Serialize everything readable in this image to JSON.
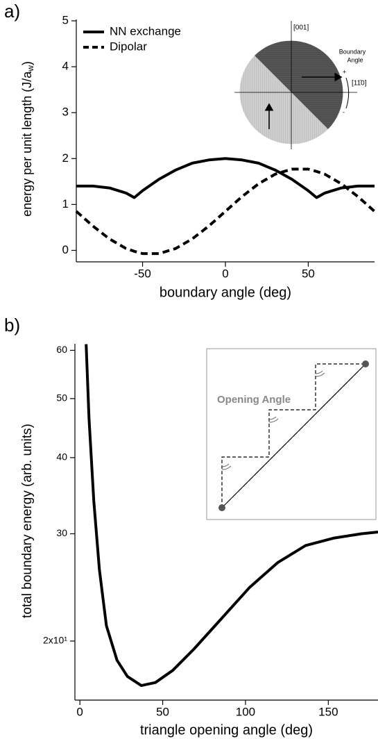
{
  "chart_data": [
    {
      "type": "line",
      "panel_label": "a)",
      "ylabel": [
        "energy per unit length (J/a",
        "w",
        ")"
      ],
      "xlabel": "boundary angle (deg)",
      "x": [
        -90,
        -80,
        -70,
        -60,
        -55,
        -50,
        -40,
        -30,
        -20,
        -10,
        0,
        10,
        20,
        30,
        40,
        50,
        55,
        60,
        70,
        80,
        90
      ],
      "series": [
        {
          "name": "NN exchange",
          "color": "#000000",
          "line_style": "solid",
          "values": [
            1.4,
            1.4,
            1.36,
            1.25,
            1.15,
            1.3,
            1.55,
            1.75,
            1.9,
            1.97,
            2.0,
            1.97,
            1.9,
            1.75,
            1.55,
            1.3,
            1.15,
            1.25,
            1.36,
            1.4,
            1.4
          ]
        },
        {
          "name": "Dipolar",
          "color": "#000000",
          "line_style": "dashed",
          "values": [
            0.85,
            0.53,
            0.25,
            0.04,
            -0.02,
            -0.07,
            -0.07,
            0.04,
            0.25,
            0.53,
            0.85,
            1.17,
            1.45,
            1.66,
            1.77,
            1.77,
            1.72,
            1.66,
            1.45,
            1.17,
            0.85
          ]
        }
      ],
      "xlim": [
        -90,
        90
      ],
      "xticks": [
        -50,
        0,
        50
      ],
      "ylim": [
        -0.25,
        5.03
      ],
      "yticks": [
        0,
        1,
        2,
        3,
        4,
        5
      ],
      "legend": "top-left",
      "inset_labels": [
        "[001]",
        "Boundary",
        "Angle",
        "[11̄0]",
        "+",
        "-"
      ]
    },
    {
      "type": "line",
      "panel_label": "b)",
      "ylabel": [
        "total boundary energy (arb. units)"
      ],
      "xlabel": "triangle opening angle (deg)",
      "x": [
        3.8,
        5.5,
        8.4,
        11.8,
        16.0,
        22.4,
        28.7,
        37.1,
        45.6,
        56.1,
        68.8,
        85.7,
        102.5,
        119.4,
        136.3,
        153,
        170,
        180
      ],
      "series": [
        {
          "color": "#000000",
          "line_style": "solid",
          "values": [
            61.4,
            46.5,
            34.0,
            26.2,
            21.2,
            18.6,
            17.5,
            16.9,
            17.1,
            17.9,
            19.4,
            21.8,
            24.5,
            26.9,
            28.7,
            29.5,
            30.0,
            30.2
          ]
        }
      ],
      "xlim": [
        -3,
        180
      ],
      "xticks": [
        0,
        50,
        100,
        150
      ],
      "ylim": [
        16,
        61.5
      ],
      "log_y": true,
      "yticks": [
        {
          "value": 20,
          "label": "2x10¹"
        },
        30,
        40,
        50,
        60
      ],
      "inset_labels": [
        "Opening Angle"
      ]
    }
  ]
}
